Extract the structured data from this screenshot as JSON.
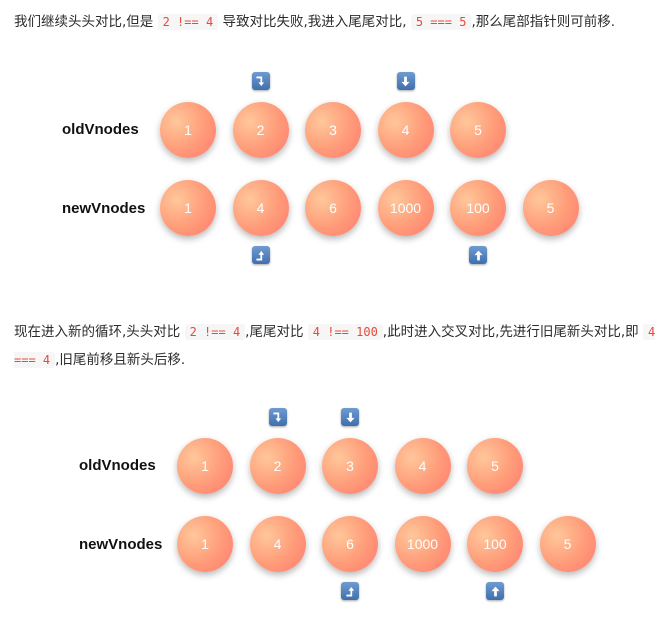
{
  "section1": {
    "text_a": "我们继续头头对比,但是",
    "code_a": "2 !== 4",
    "text_b": "导致对比失败,我进入尾尾对比,",
    "code_b": "5 === 5",
    "text_c": ",那么尾部指针则可前移."
  },
  "section2": {
    "text_a": "现在进入新的循环,头头对比",
    "code_a": "2 !== 4",
    "text_b": ",尾尾对比",
    "code_b": "4 !== 100",
    "text_c": ",此时进入交叉对比,先进行旧尾新头对比,即",
    "code_c": "4 === 4",
    "text_d": ",旧尾前移且新头后移."
  },
  "diagram1": {
    "old_label": "oldVnodes",
    "new_label": "newVnodes",
    "old_nodes": [
      "1",
      "2",
      "3",
      "4",
      "5"
    ],
    "new_nodes": [
      "1",
      "4",
      "6",
      "1000",
      "100",
      "5"
    ],
    "old_pointers": [
      {
        "icon": "arrow-turn-down-icon",
        "at_index": 1
      },
      {
        "icon": "arrow-down-icon",
        "at_index": 3
      }
    ],
    "new_pointers": [
      {
        "icon": "arrow-turn-up-icon",
        "at_index": 1
      },
      {
        "icon": "arrow-up-icon",
        "at_index": 4
      }
    ]
  },
  "diagram2": {
    "old_label": "oldVnodes",
    "new_label": "newVnodes",
    "old_nodes": [
      "1",
      "2",
      "3",
      "4",
      "5"
    ],
    "new_nodes": [
      "1",
      "4",
      "6",
      "1000",
      "100",
      "5"
    ],
    "old_pointers": [
      {
        "icon": "arrow-turn-down-icon",
        "at_index": 1
      },
      {
        "icon": "arrow-down-icon",
        "at_index": 2
      }
    ],
    "new_pointers": [
      {
        "icon": "arrow-turn-up-icon",
        "at_index": 2
      },
      {
        "icon": "arrow-up-icon",
        "at_index": 4
      }
    ]
  },
  "colors": {
    "node_light": "#ffc79a",
    "node_dark": "#ff7b72",
    "pointer": "#4f7fbf",
    "code": "#e8493a"
  }
}
